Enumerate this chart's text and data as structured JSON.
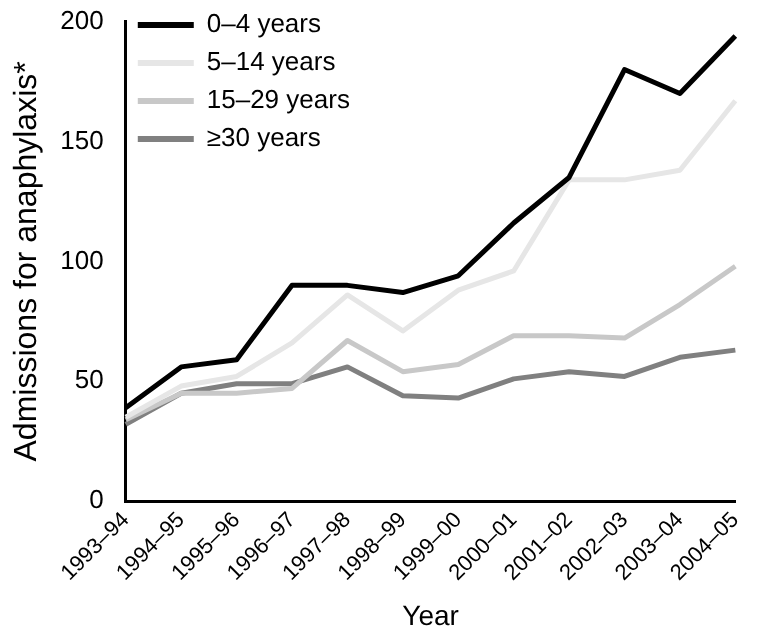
{
  "chart_data": {
    "type": "line",
    "xlabel": "Year",
    "ylabel": "Admissions for anaphylaxis*",
    "categories": [
      "1993–94",
      "1994–95",
      "1995–96",
      "1996–97",
      "1997–98",
      "1998–99",
      "1999–00",
      "2000–01",
      "2001–02",
      "2002–03",
      "2003–04",
      "2004–05"
    ],
    "series": [
      {
        "name": "0–4 years",
        "color": "#000000",
        "values": [
          39,
          56,
          59,
          90,
          90,
          87,
          94,
          116,
          135,
          180,
          170,
          194
        ]
      },
      {
        "name": "5–14 years",
        "color": "#e6e6e6",
        "values": [
          35,
          48,
          52,
          66,
          86,
          71,
          88,
          96,
          134,
          134,
          138,
          167
        ]
      },
      {
        "name": "15–29 years",
        "color": "#c8c8c8",
        "values": [
          34,
          45,
          45,
          47,
          67,
          54,
          57,
          69,
          69,
          68,
          82,
          98
        ]
      },
      {
        "name": "≥30 years",
        "color": "#808080",
        "values": [
          32,
          45,
          49,
          49,
          56,
          44,
          43,
          51,
          54,
          52,
          60,
          63
        ]
      }
    ],
    "ylim": [
      0,
      200
    ],
    "yticks": [
      0,
      50,
      100,
      150,
      200
    ],
    "grid": false,
    "legend": "top left",
    "marker": "none",
    "line_style": "solid"
  }
}
